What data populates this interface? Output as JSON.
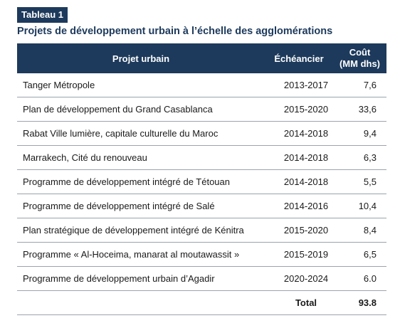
{
  "badge": "Tableau 1",
  "title": "Projets de développement urbain à l’échelle des agglomérations",
  "header": {
    "col_project": "Projet urbain",
    "col_schedule": "Échéancier",
    "col_cost_line1": "Coût",
    "col_cost_line2": "(MM dhs)"
  },
  "rows": [
    {
      "project": "Tanger Métropole",
      "schedule": "2013-2017",
      "cost": "7,6"
    },
    {
      "project": "Plan de développement du Grand Casablanca",
      "schedule": "2015-2020",
      "cost": "33,6"
    },
    {
      "project": "Rabat Ville lumière, capitale culturelle du Maroc",
      "schedule": "2014-2018",
      "cost": "9,4"
    },
    {
      "project": "Marrakech, Cité du renouveau",
      "schedule": "2014-2018",
      "cost": "6,3"
    },
    {
      "project": "Programme de développement intégré de Tétouan",
      "schedule": "2014-2018",
      "cost": "5,5"
    },
    {
      "project": "Programme de développement intégré de Salé",
      "schedule": "2014-2016",
      "cost": "10,4"
    },
    {
      "project": "Plan stratégique de développement intégré de Kénitra",
      "schedule": "2015-2020",
      "cost": "8,4"
    },
    {
      "project": "Programme « Al-Hoceima, manarat al moutawassit »",
      "schedule": "2015-2019",
      "cost": "6,5"
    },
    {
      "project": "Programme de développement urbain d’Agadir",
      "schedule": "2020-2024",
      "cost": "6.0"
    }
  ],
  "total": {
    "label": "Total",
    "value": "93.8"
  }
}
